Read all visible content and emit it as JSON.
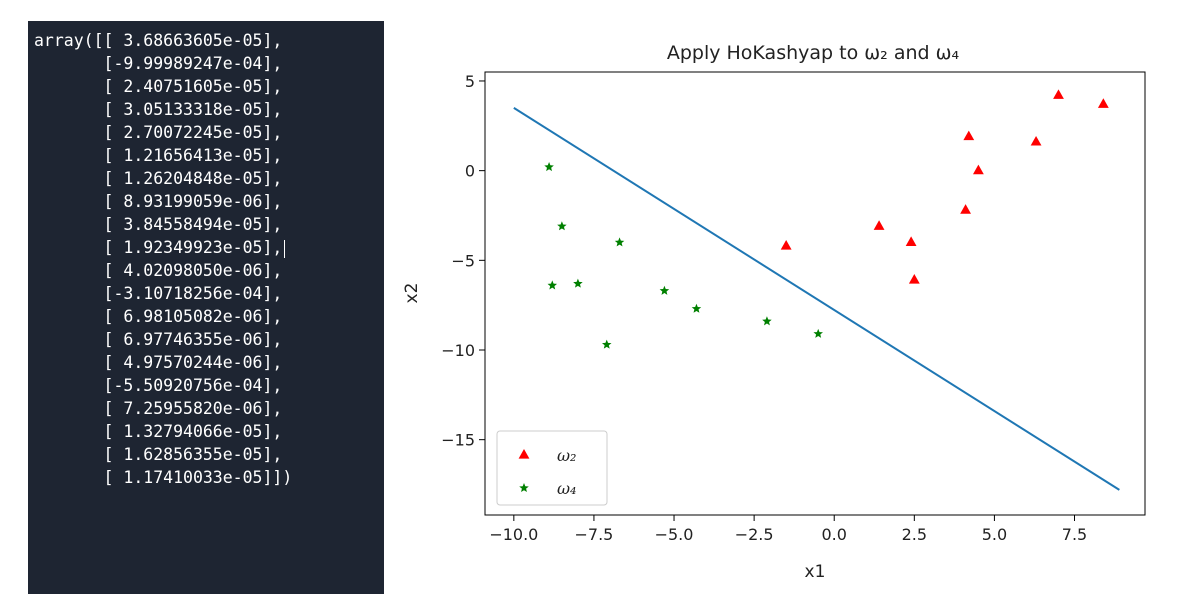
{
  "code_output": {
    "lines": [
      "array([[ 3.68663605e-05],",
      "       [-9.99989247e-04],",
      "       [ 2.40751605e-05],",
      "       [ 3.05133318e-05],",
      "       [ 2.70072245e-05],",
      "       [ 1.21656413e-05],",
      "       [ 1.26204848e-05],",
      "       [ 8.93199059e-06],",
      "       [ 3.84558494e-05],",
      "       [ 1.92349923e-05],",
      "       [ 4.02098050e-06],",
      "       [-3.10718256e-04],",
      "       [ 6.98105082e-06],",
      "       [ 6.97746355e-06],",
      "       [ 4.97570244e-06],",
      "       [-5.50920756e-04],",
      "       [ 7.25955820e-06],",
      "       [ 1.32794066e-05],",
      "       [ 1.62856355e-05],",
      "       [ 1.17410033e-05]])"
    ],
    "colors": {
      "background": "#1e2532",
      "text": "#ffffff"
    }
  },
  "chart_data": {
    "type": "scatter",
    "title": "Apply HoKashyap to ω₂ and ω₄",
    "xlabel": "x1",
    "ylabel": "x2",
    "xlim": [
      -10.9,
      9.7
    ],
    "ylim": [
      -19.2,
      5.5
    ],
    "xticks": [
      -10.0,
      -7.5,
      -5.0,
      -2.5,
      0.0,
      2.5,
      5.0,
      7.5
    ],
    "xtick_labels": [
      "−10.0",
      "−7.5",
      "−5.0",
      "−2.5",
      "0.0",
      "2.5",
      "5.0",
      "7.5"
    ],
    "yticks": [
      5,
      0,
      -5,
      -10,
      -15
    ],
    "ytick_labels": [
      "5",
      "0",
      "−5",
      "−10",
      "−15"
    ],
    "grid": false,
    "legend_position": "lower-left",
    "series": [
      {
        "name": "ω₂",
        "marker": "triangle",
        "color": "#ff0000",
        "points": [
          [
            -1.5,
            -4.2
          ],
          [
            1.4,
            -3.1
          ],
          [
            2.4,
            -4.0
          ],
          [
            2.5,
            -6.1
          ],
          [
            4.1,
            -2.2
          ],
          [
            4.2,
            1.9
          ],
          [
            4.5,
            0.0
          ],
          [
            6.3,
            1.6
          ],
          [
            7.0,
            4.2
          ],
          [
            8.4,
            3.7
          ]
        ]
      },
      {
        "name": "ω₄",
        "marker": "star",
        "color": "#008000",
        "points": [
          [
            -8.9,
            0.2
          ],
          [
            -8.5,
            -3.1
          ],
          [
            -8.8,
            -6.4
          ],
          [
            -8.0,
            -6.3
          ],
          [
            -6.7,
            -4.0
          ],
          [
            -7.1,
            -9.7
          ],
          [
            -5.3,
            -6.7
          ],
          [
            -4.3,
            -7.7
          ],
          [
            -2.1,
            -8.4
          ],
          [
            -0.5,
            -9.1
          ]
        ]
      },
      {
        "name": "",
        "kind": "line",
        "color": "#1f77b4",
        "points": [
          [
            -10.0,
            3.5
          ],
          [
            8.9,
            -17.8
          ]
        ]
      }
    ]
  }
}
